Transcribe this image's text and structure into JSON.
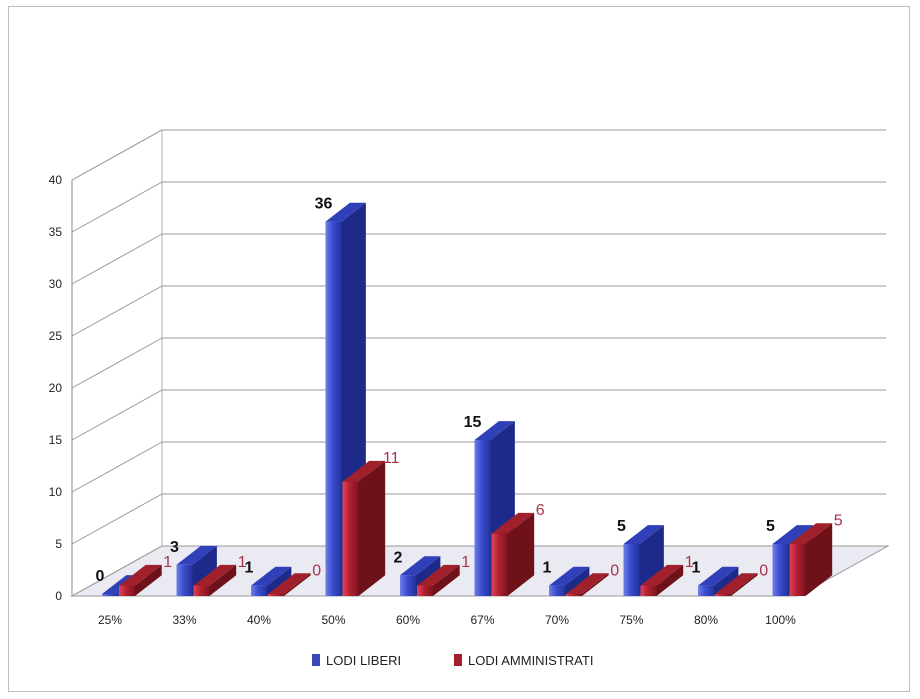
{
  "chart_data": {
    "type": "bar",
    "categories": [
      "25%",
      "33%",
      "40%",
      "50%",
      "60%",
      "67%",
      "70%",
      "75%",
      "80%",
      "100%"
    ],
    "series": [
      {
        "name": "LODI LIBERI",
        "values": [
          0,
          3,
          1,
          36,
          2,
          15,
          1,
          5,
          1,
          5
        ],
        "color": "#3a47b8"
      },
      {
        "name": "LODI AMMINISTRATI",
        "values": [
          1,
          1,
          0,
          11,
          1,
          6,
          0,
          1,
          0,
          5
        ],
        "color": "#a3202c"
      }
    ],
    "y_ticks": [
      "0",
      "5",
      "10",
      "15",
      "20",
      "25",
      "30",
      "35",
      "40"
    ],
    "ylim": [
      0,
      40
    ],
    "grid": true,
    "legend": "bottom",
    "style": "3d-clustered-column"
  }
}
